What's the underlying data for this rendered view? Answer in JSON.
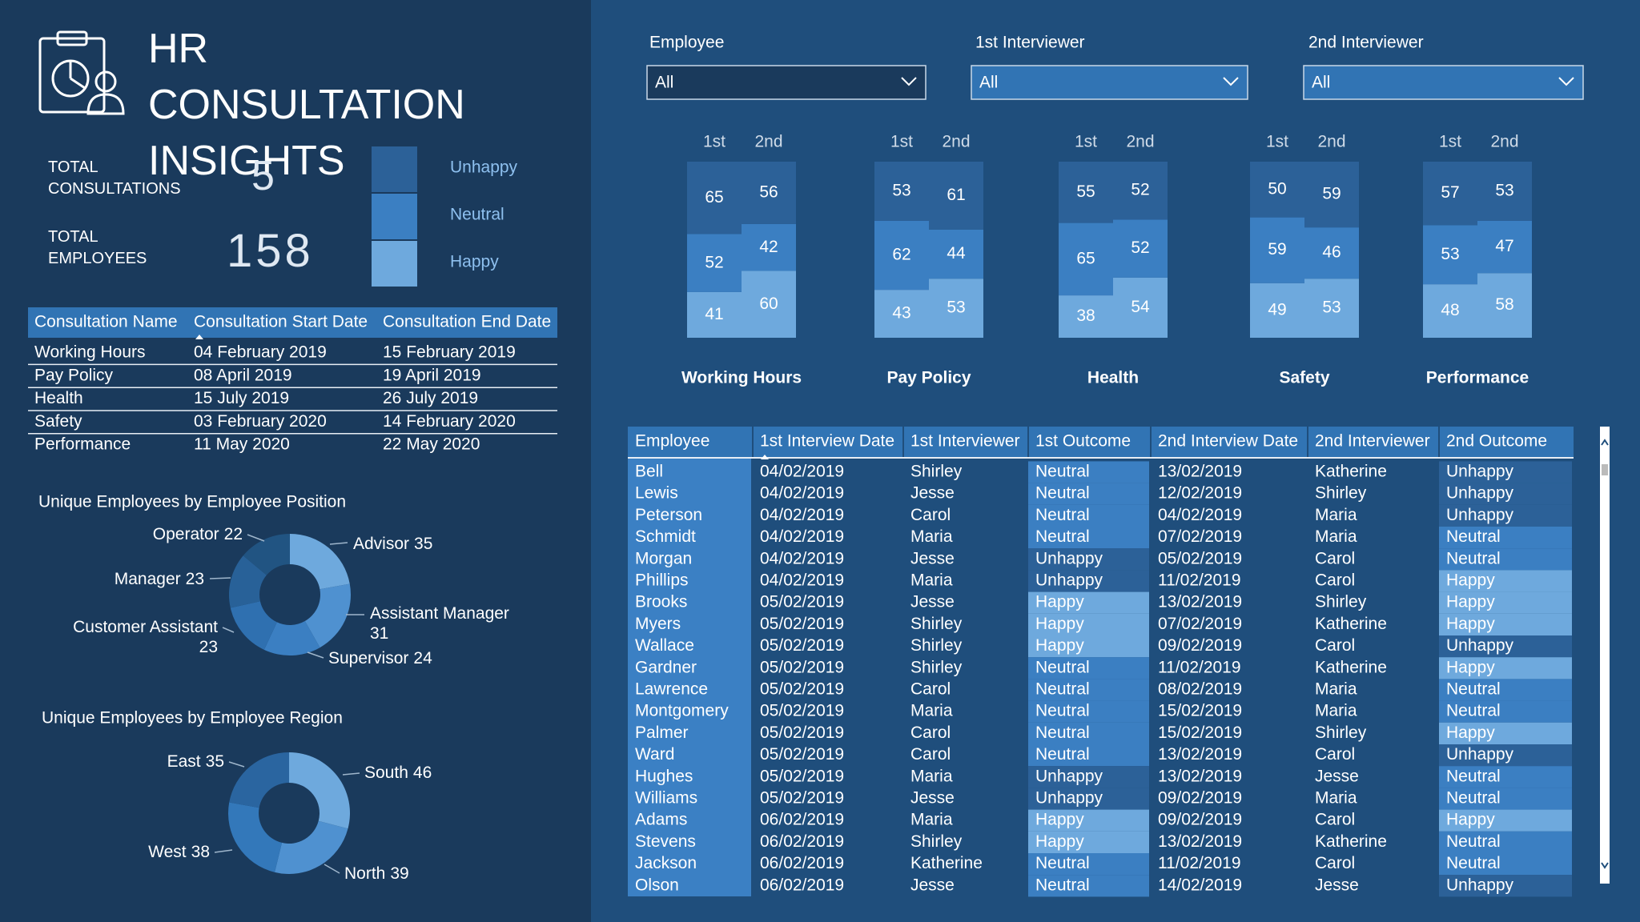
{
  "header": {
    "title": "HR CONSULTATION INSIGHTS"
  },
  "kpis": [
    {
      "label": "TOTAL CONSULTATIONS",
      "value": 5
    },
    {
      "label": "TOTAL EMPLOYEES",
      "value": 158
    }
  ],
  "legend": [
    {
      "name": "Unhappy",
      "color": "#2c6198"
    },
    {
      "name": "Neutral",
      "color": "#3b7fc2"
    },
    {
      "name": "Happy",
      "color": "#6ea9dd"
    }
  ],
  "consultation_table": {
    "columns": [
      "Consultation Name",
      "Consultation Start Date",
      "Consultation End Date"
    ],
    "rows": [
      [
        "Working Hours",
        "04 February 2019",
        "15 February 2019"
      ],
      [
        "Pay Policy",
        "08 April 2019",
        "19 April 2019"
      ],
      [
        "Health",
        "15 July 2019",
        "26 July 2019"
      ],
      [
        "Safety",
        "03 February 2020",
        "14 February 2020"
      ],
      [
        "Performance",
        "11 May 2020",
        "22 May 2020"
      ]
    ]
  },
  "filters": [
    {
      "label": "Employee",
      "value": "All"
    },
    {
      "label": "1st Interviewer",
      "value": "All"
    },
    {
      "label": "2nd Interviewer",
      "value": "All"
    }
  ],
  "chart_data": [
    {
      "type": "bar",
      "stacked": true,
      "title": "Working Hours",
      "categories": [
        "1st",
        "2nd"
      ],
      "series": [
        {
          "values": [
            65,
            56
          ]
        },
        {
          "values": [
            52,
            42
          ]
        },
        {
          "values": [
            41,
            60
          ]
        }
      ]
    },
    {
      "type": "bar",
      "stacked": true,
      "title": "Pay Policy",
      "categories": [
        "1st",
        "2nd"
      ],
      "series": [
        {
          "values": [
            53,
            61
          ]
        },
        {
          "values": [
            62,
            44
          ]
        },
        {
          "values": [
            43,
            53
          ]
        }
      ]
    },
    {
      "type": "bar",
      "stacked": true,
      "title": "Health",
      "categories": [
        "1st",
        "2nd"
      ],
      "series": [
        {
          "values": [
            55,
            52
          ]
        },
        {
          "values": [
            65,
            52
          ]
        },
        {
          "values": [
            38,
            54
          ]
        }
      ]
    },
    {
      "type": "bar",
      "stacked": true,
      "title": "Safety",
      "categories": [
        "1st",
        "2nd"
      ],
      "series": [
        {
          "values": [
            50,
            59
          ]
        },
        {
          "values": [
            59,
            46
          ]
        },
        {
          "values": [
            49,
            53
          ]
        }
      ]
    },
    {
      "type": "bar",
      "stacked": true,
      "title": "Performance",
      "categories": [
        "1st",
        "2nd"
      ],
      "series": [
        {
          "values": [
            57,
            53
          ]
        },
        {
          "values": [
            53,
            47
          ]
        },
        {
          "values": [
            48,
            58
          ]
        }
      ]
    },
    {
      "type": "pie",
      "donut": true,
      "title": "Unique Employees by Employee Position",
      "categories": [
        "Advisor",
        "Assistant Manager",
        "Supervisor",
        "Customer Assistant",
        "Manager",
        "Operator"
      ],
      "values": [
        35,
        31,
        24,
        23,
        23,
        22
      ],
      "colors": [
        "#6ea9dd",
        "#4f91d0",
        "#3b7fc2",
        "#2f70b0",
        "#286198",
        "#215482"
      ]
    },
    {
      "type": "pie",
      "donut": true,
      "title": "Unique Employees by Employee Region",
      "categories": [
        "South",
        "North",
        "West",
        "East"
      ],
      "values": [
        46,
        39,
        38,
        35
      ],
      "colors": [
        "#6ea9dd",
        "#4f91d0",
        "#3378ba",
        "#2a65a0"
      ]
    }
  ],
  "employee_table": {
    "columns": [
      "Employee",
      "1st Interview Date",
      "1st Interviewer",
      "1st Outcome",
      "2nd Interview Date",
      "2nd Interviewer",
      "2nd Outcome"
    ],
    "rows": [
      [
        "Bell",
        "04/02/2019",
        "Shirley",
        "Neutral",
        "13/02/2019",
        "Katherine",
        "Unhappy"
      ],
      [
        "Lewis",
        "04/02/2019",
        "Jesse",
        "Neutral",
        "12/02/2019",
        "Shirley",
        "Unhappy"
      ],
      [
        "Peterson",
        "04/02/2019",
        "Carol",
        "Neutral",
        "04/02/2019",
        "Maria",
        "Unhappy"
      ],
      [
        "Schmidt",
        "04/02/2019",
        "Maria",
        "Neutral",
        "07/02/2019",
        "Maria",
        "Neutral"
      ],
      [
        "Morgan",
        "04/02/2019",
        "Jesse",
        "Unhappy",
        "05/02/2019",
        "Carol",
        "Neutral"
      ],
      [
        "Phillips",
        "04/02/2019",
        "Maria",
        "Unhappy",
        "11/02/2019",
        "Carol",
        "Happy"
      ],
      [
        "Brooks",
        "05/02/2019",
        "Jesse",
        "Happy",
        "13/02/2019",
        "Shirley",
        "Happy"
      ],
      [
        "Myers",
        "05/02/2019",
        "Shirley",
        "Happy",
        "07/02/2019",
        "Katherine",
        "Happy"
      ],
      [
        "Wallace",
        "05/02/2019",
        "Shirley",
        "Happy",
        "09/02/2019",
        "Carol",
        "Unhappy"
      ],
      [
        "Gardner",
        "05/02/2019",
        "Shirley",
        "Neutral",
        "11/02/2019",
        "Katherine",
        "Happy"
      ],
      [
        "Lawrence",
        "05/02/2019",
        "Carol",
        "Neutral",
        "08/02/2019",
        "Maria",
        "Neutral"
      ],
      [
        "Montgomery",
        "05/02/2019",
        "Maria",
        "Neutral",
        "15/02/2019",
        "Maria",
        "Neutral"
      ],
      [
        "Palmer",
        "05/02/2019",
        "Carol",
        "Neutral",
        "15/02/2019",
        "Shirley",
        "Happy"
      ],
      [
        "Ward",
        "05/02/2019",
        "Carol",
        "Neutral",
        "13/02/2019",
        "Carol",
        "Unhappy"
      ],
      [
        "Hughes",
        "05/02/2019",
        "Maria",
        "Unhappy",
        "13/02/2019",
        "Jesse",
        "Neutral"
      ],
      [
        "Williams",
        "05/02/2019",
        "Jesse",
        "Unhappy",
        "09/02/2019",
        "Maria",
        "Neutral"
      ],
      [
        "Adams",
        "06/02/2019",
        "Maria",
        "Happy",
        "09/02/2019",
        "Carol",
        "Happy"
      ],
      [
        "Stevens",
        "06/02/2019",
        "Shirley",
        "Happy",
        "13/02/2019",
        "Katherine",
        "Neutral"
      ],
      [
        "Jackson",
        "06/02/2019",
        "Katherine",
        "Neutral",
        "11/02/2019",
        "Carol",
        "Neutral"
      ],
      [
        "Olson",
        "06/02/2019",
        "Jesse",
        "Neutral",
        "14/02/2019",
        "Jesse",
        "Unhappy"
      ]
    ]
  }
}
